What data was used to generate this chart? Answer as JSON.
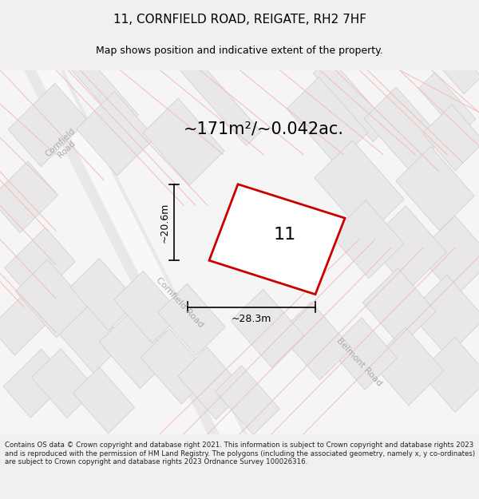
{
  "title": "11, CORNFIELD ROAD, REIGATE, RH2 7HF",
  "subtitle": "Map shows position and indicative extent of the property.",
  "area_text": "~171m²/~0.042ac.",
  "plot_number": "11",
  "width_label": "~28.3m",
  "height_label": "~20.6m",
  "footer_text": "Contains OS data © Crown copyright and database right 2021. This information is subject to Crown copyright and database rights 2023 and is reproduced with the permission of HM Land Registry. The polygons (including the associated geometry, namely x, y co-ordinates) are subject to Crown copyright and database rights 2023 Ordnance Survey 100026316.",
  "bg_color": "#f0f0f0",
  "map_bg": "#ffffff",
  "road_color": "#d8d8d8",
  "building_fill": "#e8e8e8",
  "building_stroke": "#cccccc",
  "road_line_color": "#f5c0c0",
  "plot_fill": "#ffffff",
  "plot_stroke": "#cc0000",
  "road_label_color": "#aaaaaa",
  "title_color": "#000000",
  "dim_color": "#000000"
}
